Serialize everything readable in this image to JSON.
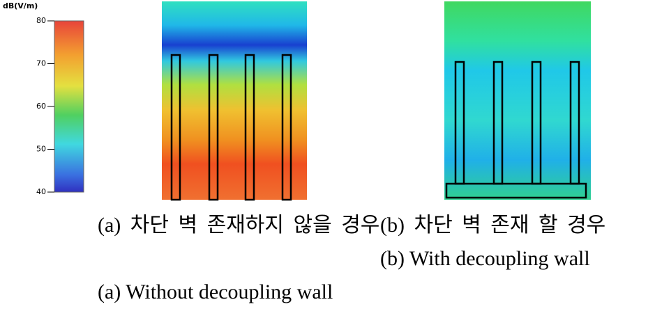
{
  "colorbar": {
    "label": "dB(V/m)",
    "range": [
      40,
      80
    ],
    "ticks": [
      80,
      70,
      60,
      50,
      40
    ]
  },
  "captions": {
    "a_korean": "(a) 차단 벽 존재하지 않을 경우",
    "a_english": "(a) Without decoupling wall",
    "b_korean": "(b) 차단 벽 존재 할 경우",
    "b_english": "(b) With decoupling wall"
  }
}
